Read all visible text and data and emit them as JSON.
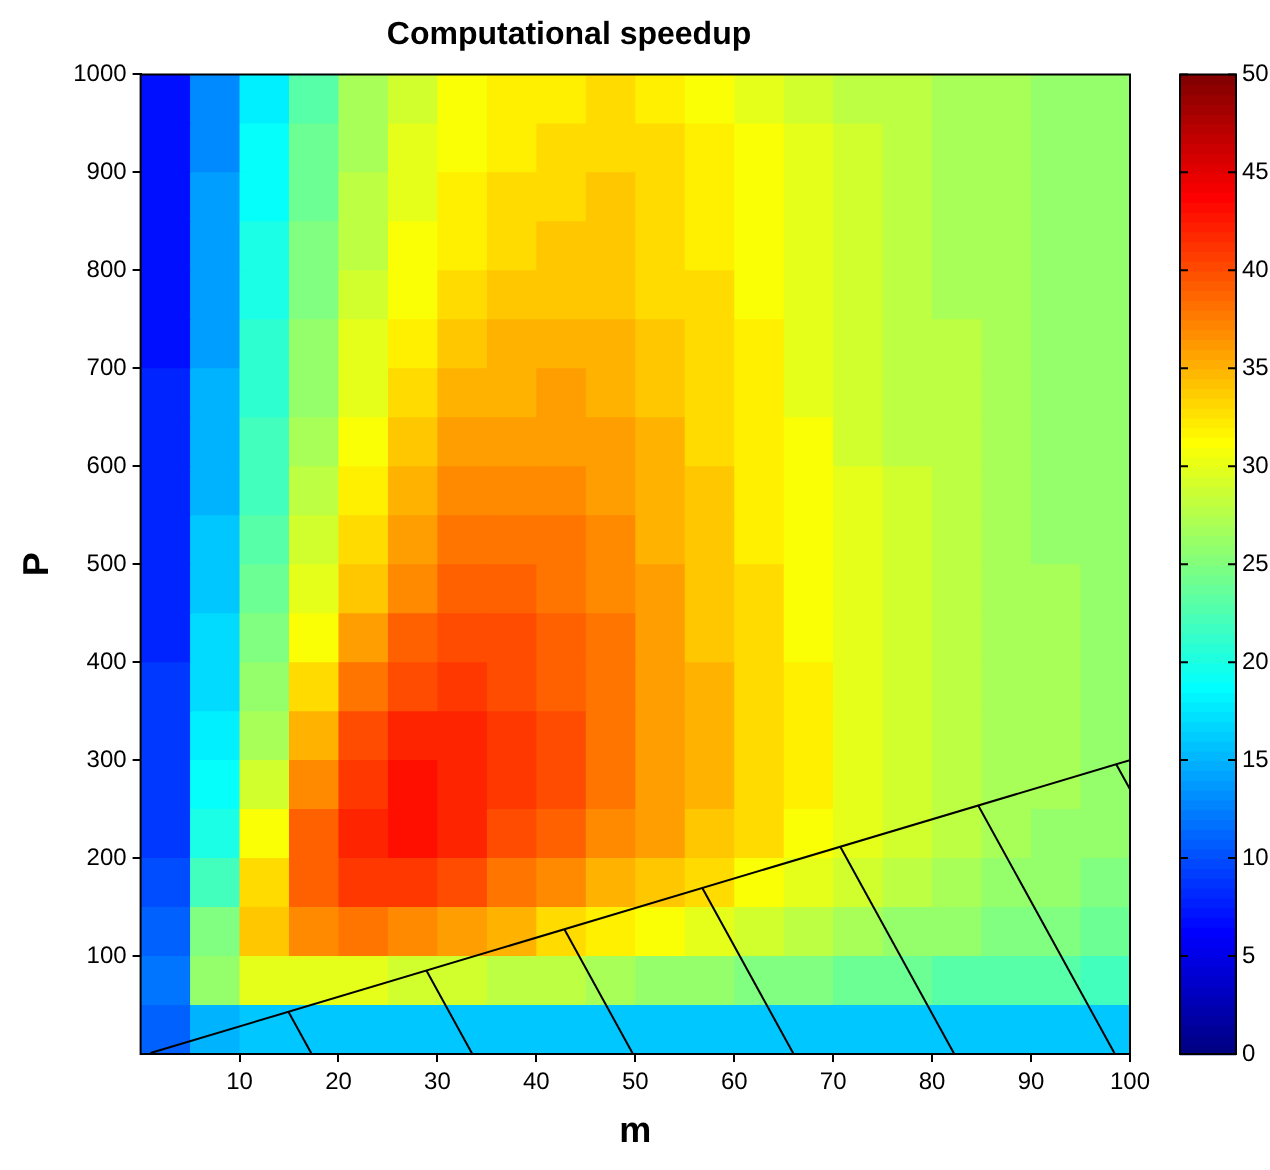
{
  "chart_data": {
    "type": "heatmap",
    "title": "Computational speedup",
    "xlabel": "m",
    "ylabel": "P",
    "x": [
      2.5,
      7.5,
      12.5,
      17.5,
      22.5,
      27.5,
      32.5,
      37.5,
      42.5,
      47.5,
      52.5,
      57.5,
      62.5,
      67.5,
      72.5,
      77.5,
      82.5,
      87.5,
      92.5,
      97.5
    ],
    "xlim": [
      0,
      100
    ],
    "xticks": [
      10,
      20,
      30,
      40,
      50,
      60,
      70,
      80,
      90,
      100
    ],
    "ylim": [
      0,
      1000
    ],
    "yticks": [
      100,
      200,
      300,
      400,
      500,
      600,
      700,
      800,
      900,
      1000
    ],
    "clim": [
      0,
      50
    ],
    "cticks": [
      0,
      5,
      10,
      15,
      20,
      25,
      30,
      35,
      40,
      45,
      50
    ],
    "cells": [
      [
        7,
        13,
        18,
        23,
        27,
        29,
        31,
        32,
        32,
        33,
        32,
        31,
        30,
        29,
        28,
        28,
        27,
        27,
        26,
        26
      ],
      [
        7,
        13,
        19,
        24,
        27,
        30,
        31,
        32,
        33,
        33,
        33,
        32,
        31,
        30,
        29,
        28,
        27,
        27,
        26,
        26
      ],
      [
        7,
        14,
        19,
        24,
        28,
        30,
        32,
        33,
        33,
        34,
        33,
        32,
        31,
        30,
        29,
        28,
        27,
        27,
        26,
        26
      ],
      [
        7,
        14,
        20,
        25,
        28,
        31,
        32,
        33,
        34,
        34,
        33,
        32,
        31,
        30,
        29,
        28,
        27,
        27,
        26,
        26
      ],
      [
        7,
        14,
        20,
        25,
        29,
        31,
        33,
        34,
        34,
        34,
        33,
        33,
        31,
        30,
        29,
        28,
        27,
        27,
        26,
        26
      ],
      [
        7,
        14,
        21,
        26,
        30,
        32,
        34,
        35,
        35,
        35,
        34,
        33,
        32,
        30,
        29,
        28,
        28,
        27,
        26,
        26
      ],
      [
        8,
        15,
        21,
        26,
        30,
        33,
        35,
        35,
        36,
        35,
        34,
        33,
        32,
        30,
        29,
        28,
        28,
        27,
        26,
        26
      ],
      [
        8,
        15,
        22,
        27,
        31,
        34,
        36,
        36,
        36,
        36,
        35,
        33,
        32,
        31,
        29,
        28,
        28,
        27,
        26,
        26
      ],
      [
        8,
        15,
        22,
        28,
        32,
        35,
        37,
        37,
        37,
        36,
        35,
        34,
        32,
        31,
        30,
        29,
        28,
        27,
        26,
        26
      ],
      [
        8,
        16,
        23,
        29,
        33,
        36,
        38,
        38,
        38,
        37,
        35,
        34,
        32,
        31,
        30,
        29,
        28,
        27,
        26,
        26
      ],
      [
        8,
        16,
        24,
        30,
        34,
        37,
        39,
        39,
        38,
        37,
        36,
        34,
        33,
        31,
        30,
        29,
        28,
        27,
        27,
        26
      ],
      [
        8,
        17,
        25,
        31,
        36,
        39,
        40,
        40,
        39,
        38,
        36,
        34,
        33,
        31,
        30,
        29,
        28,
        27,
        27,
        26
      ],
      [
        9,
        17,
        26,
        33,
        38,
        40,
        41,
        40,
        39,
        38,
        36,
        35,
        33,
        32,
        30,
        29,
        28,
        27,
        27,
        26
      ],
      [
        9,
        18,
        27,
        35,
        40,
        42,
        42,
        41,
        40,
        38,
        36,
        35,
        33,
        32,
        30,
        29,
        28,
        27,
        27,
        26
      ],
      [
        9,
        19,
        29,
        37,
        41,
        43,
        42,
        41,
        40,
        38,
        36,
        35,
        33,
        32,
        30,
        29,
        28,
        27,
        27,
        26
      ],
      [
        9,
        20,
        31,
        39,
        42,
        43,
        42,
        40,
        39,
        37,
        36,
        34,
        33,
        31,
        30,
        29,
        28,
        27,
        26,
        26
      ],
      [
        10,
        22,
        33,
        39,
        41,
        41,
        40,
        38,
        37,
        35,
        34,
        33,
        31,
        30,
        29,
        28,
        27,
        26,
        26,
        25
      ],
      [
        11,
        25,
        34,
        37,
        38,
        37,
        36,
        35,
        33,
        32,
        31,
        30,
        29,
        28,
        27,
        26,
        26,
        25,
        25,
        24
      ],
      [
        12,
        26,
        30,
        30,
        30,
        29,
        29,
        28,
        28,
        27,
        26,
        26,
        25,
        25,
        24,
        24,
        23,
        23,
        23,
        22
      ],
      [
        11,
        15,
        16,
        16,
        16,
        16,
        16,
        16,
        16,
        16,
        16,
        16,
        16,
        16,
        16,
        16,
        16,
        16,
        16,
        16
      ]
    ],
    "series": [
      {
        "type": "line",
        "x": [
          1,
          100
        ],
        "values": [
          1,
          300
        ],
        "color": "#000000"
      }
    ]
  }
}
